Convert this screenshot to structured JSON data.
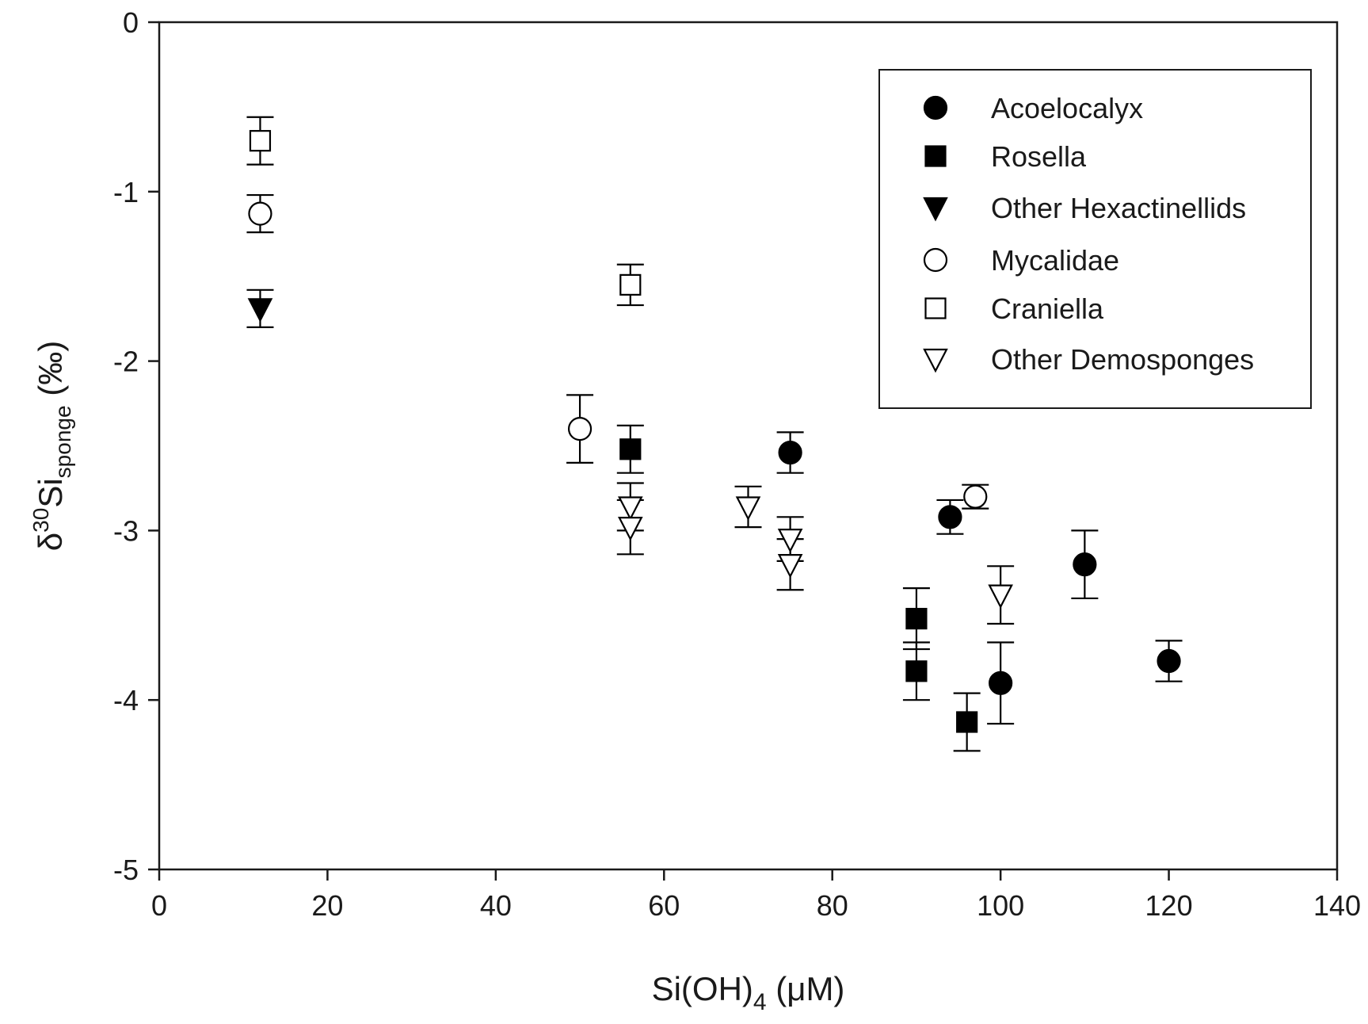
{
  "chart_data": {
    "type": "scatter",
    "xlabel": "Si(OH)",
    "xlabel_sub": "4",
    "xlabel_unit": " (μM)",
    "ylabel_delta": "δ",
    "ylabel_sup": "30",
    "ylabel_main": "Si",
    "ylabel_sub": "sponge",
    "ylabel_unit": " (‰)",
    "xlim": [
      0,
      140
    ],
    "ylim": [
      -5,
      0
    ],
    "xticks": [
      0,
      20,
      40,
      60,
      80,
      100,
      120,
      140
    ],
    "yticks": [
      0,
      -1,
      -2,
      -3,
      -4,
      -5
    ],
    "xtick_labels": [
      "0",
      "20",
      "40",
      "60",
      "80",
      "100",
      "120",
      "140"
    ],
    "ytick_labels": [
      "0",
      "-1",
      "-2",
      "-3",
      "-4",
      "-5"
    ],
    "grid": false,
    "legend_position": "top-right",
    "series": [
      {
        "name": "Acoelocalyx",
        "marker": "circle",
        "filled": true,
        "points": [
          {
            "x": 75,
            "y": -2.54,
            "err": 0.12
          },
          {
            "x": 94,
            "y": -2.92,
            "err": 0.1
          },
          {
            "x": 100,
            "y": -3.9,
            "err": 0.24
          },
          {
            "x": 110,
            "y": -3.2,
            "err": 0.2
          },
          {
            "x": 120,
            "y": -3.77,
            "err": 0.12
          }
        ]
      },
      {
        "name": "Rosella",
        "marker": "square",
        "filled": true,
        "points": [
          {
            "x": 56,
            "y": -2.52,
            "err": 0.14
          },
          {
            "x": 90,
            "y": -3.52,
            "err": 0.18
          },
          {
            "x": 90,
            "y": -3.83,
            "err": 0.17
          },
          {
            "x": 96,
            "y": -4.13,
            "err": 0.17
          }
        ]
      },
      {
        "name": "Other Hexactinellids",
        "marker": "triangle-down",
        "filled": true,
        "points": [
          {
            "x": 12,
            "y": -1.69,
            "err": 0.11
          }
        ]
      },
      {
        "name": "Mycalidae",
        "marker": "circle",
        "filled": false,
        "points": [
          {
            "x": 12,
            "y": -1.13,
            "err": 0.11
          },
          {
            "x": 50,
            "y": -2.4,
            "err": 0.2
          },
          {
            "x": 97,
            "y": -2.8,
            "err": 0.07
          }
        ]
      },
      {
        "name": "Craniella",
        "marker": "square",
        "filled": false,
        "points": [
          {
            "x": 12,
            "y": -0.7,
            "err": 0.14
          },
          {
            "x": 56,
            "y": -1.55,
            "err": 0.12
          }
        ]
      },
      {
        "name": "Other Demosponges",
        "marker": "triangle-down",
        "filled": false,
        "points": [
          {
            "x": 56,
            "y": -2.86,
            "err": 0.14
          },
          {
            "x": 56,
            "y": -2.98,
            "err": 0.16
          },
          {
            "x": 70,
            "y": -2.86,
            "err": 0.12
          },
          {
            "x": 75,
            "y": -3.05,
            "err": 0.13
          },
          {
            "x": 75,
            "y": -3.2,
            "err": 0.15
          },
          {
            "x": 100,
            "y": -3.38,
            "err": 0.17
          }
        ]
      }
    ],
    "colors": {
      "marker": "#000000",
      "axis": "#1a1a1a",
      "background": "#ffffff"
    }
  }
}
